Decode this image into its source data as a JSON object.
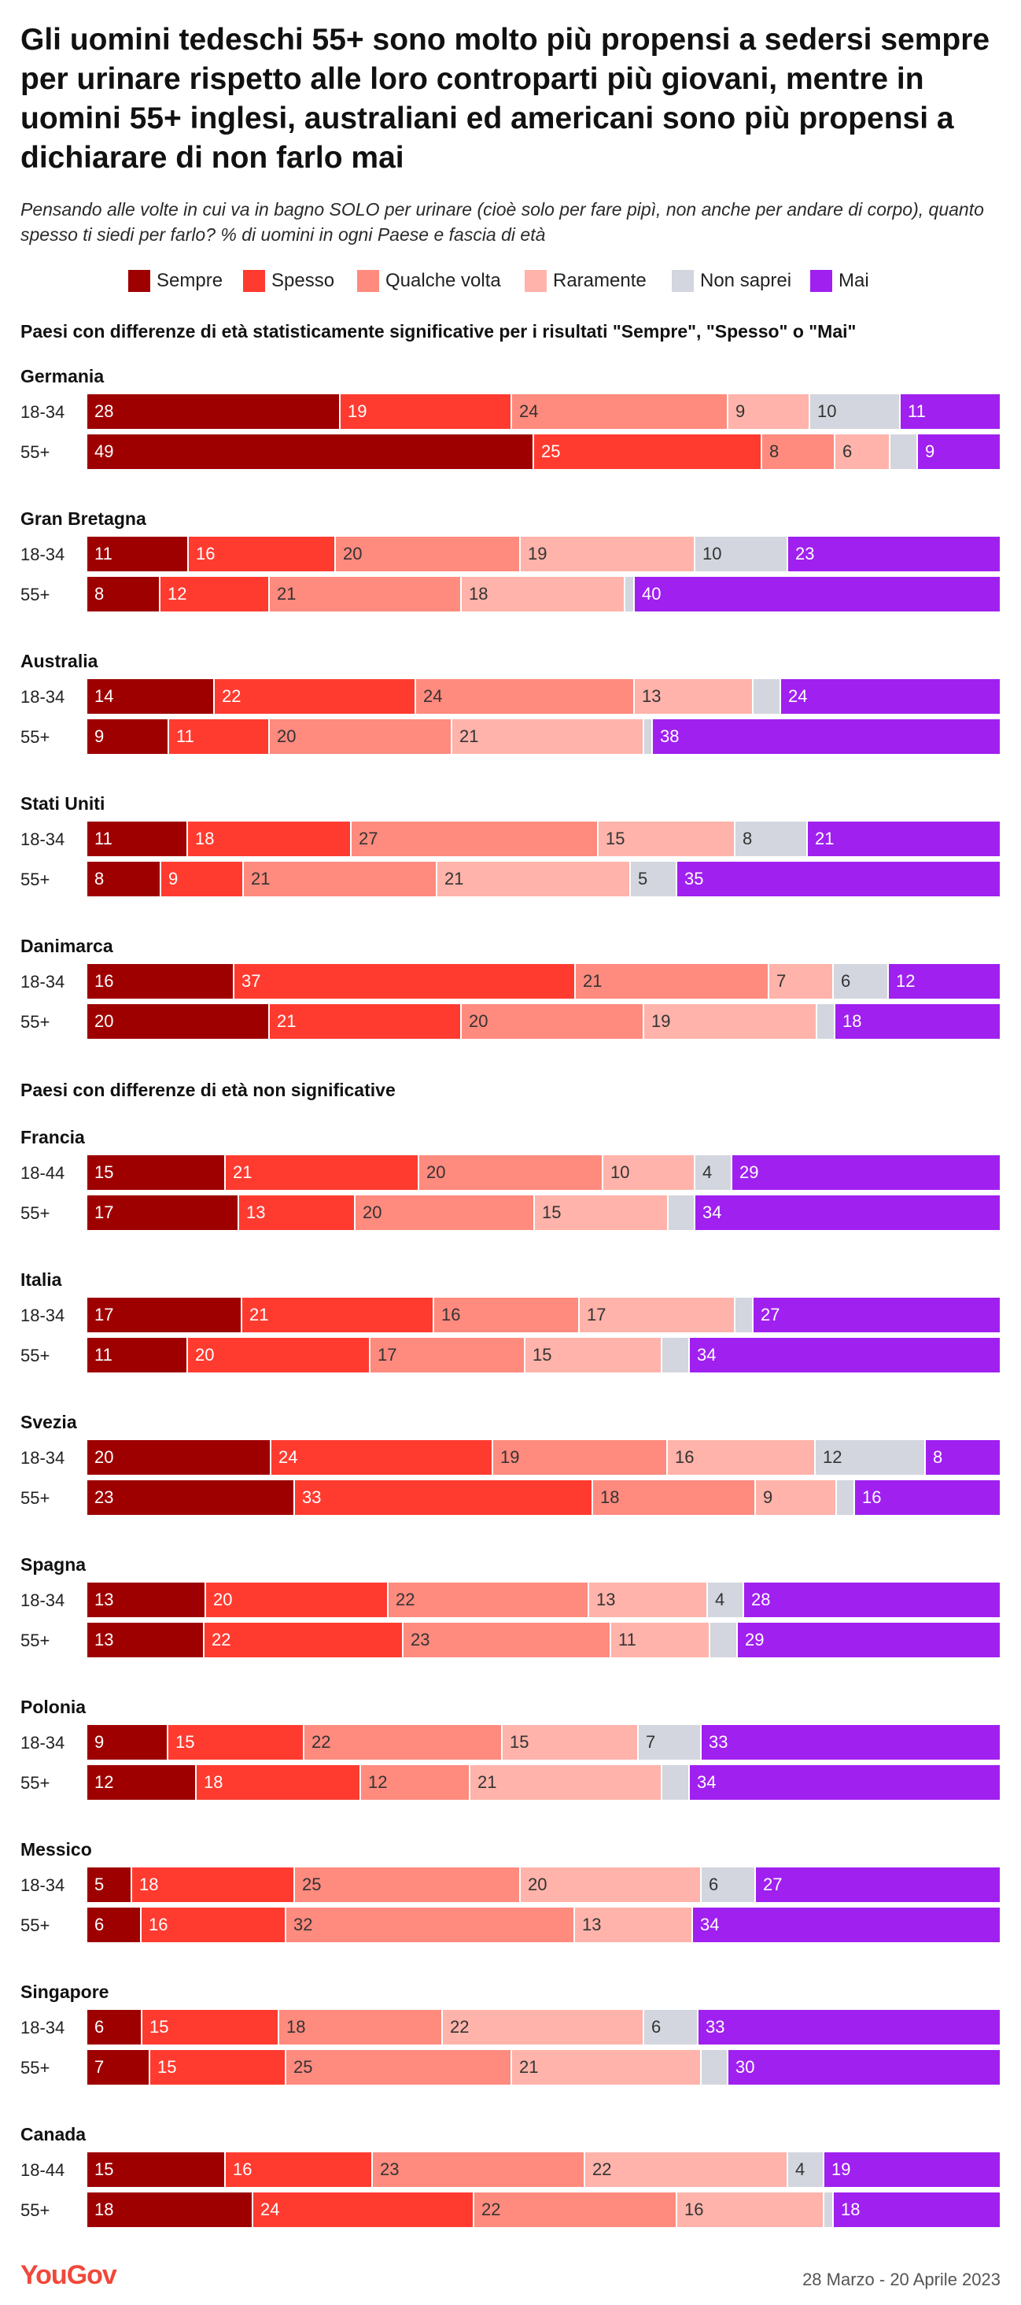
{
  "title": "Gli uomini tedeschi 55+ sono molto più propensi a sedersi sempre per urinare rispetto alle loro controparti più giovani, mentre in uomini 55+ inglesi, australiani ed americani sono più propensi a dichiarare di non farlo mai",
  "subtitle": "Pensando alle volte in cui va in bagno SOLO per urinare (cioè solo per fare pipì, non anche per andare di corpo), quanto spesso ti siedi per farlo? % di uomini in ogni Paese e fascia di età",
  "footer": {
    "logo": "YouGov",
    "date": "28 Marzo - 20 Aprile 2023"
  },
  "chart_data": {
    "type": "bar",
    "orientation": "horizontal-stacked-100",
    "categories_series": [
      "Sempre",
      "Spesso",
      "Qualche volta",
      "Raramente",
      "Non saprei",
      "Mai"
    ],
    "colors": [
      "#9e0000",
      "#ff3b30",
      "#ff8a7e",
      "#ffb3aa",
      "#d3d6de",
      "#a020f0"
    ],
    "legend_placement": "top",
    "sections": [
      {
        "title": "Paesi con differenze di età statisticamente significative per i risultati \"Sempre\", \"Spesso\" o \"Mai\"",
        "countries": [
          {
            "name": "Germania",
            "rows": [
              {
                "age": "18-34",
                "values": [
                  28,
                  19,
                  24,
                  9,
                  10,
                  11
                ],
                "labels": [
                  "28",
                  "19",
                  "24",
                  "9",
                  "10",
                  "11"
                ]
              },
              {
                "age": "55+",
                "values": [
                  49,
                  25,
                  8,
                  6,
                  3,
                  9
                ],
                "labels": [
                  "49",
                  "25",
                  "8",
                  "6",
                  "",
                  "9"
                ]
              }
            ]
          },
          {
            "name": "Gran Bretagna",
            "rows": [
              {
                "age": "18-34",
                "values": [
                  11,
                  16,
                  20,
                  19,
                  10,
                  23
                ],
                "labels": [
                  "11",
                  "16",
                  "20",
                  "19",
                  "10",
                  "23"
                ]
              },
              {
                "age": "55+",
                "values": [
                  8,
                  12,
                  21,
                  18,
                  1,
                  40
                ],
                "labels": [
                  "8",
                  "12",
                  "21",
                  "18",
                  "",
                  "40"
                ]
              }
            ]
          },
          {
            "name": "Australia",
            "rows": [
              {
                "age": "18-34",
                "values": [
                  14,
                  22,
                  24,
                  13,
                  3,
                  24
                ],
                "labels": [
                  "14",
                  "22",
                  "24",
                  "13",
                  "",
                  "24"
                ]
              },
              {
                "age": "55+",
                "values": [
                  9,
                  11,
                  20,
                  21,
                  1,
                  38
                ],
                "labels": [
                  "9",
                  "11",
                  "20",
                  "21",
                  "",
                  "38"
                ]
              }
            ]
          },
          {
            "name": "Stati Uniti",
            "rows": [
              {
                "age": "18-34",
                "values": [
                  11,
                  18,
                  27,
                  15,
                  8,
                  21
                ],
                "labels": [
                  "11",
                  "18",
                  "27",
                  "15",
                  "8",
                  "21"
                ]
              },
              {
                "age": "55+",
                "values": [
                  8,
                  9,
                  21,
                  21,
                  5,
                  35
                ],
                "labels": [
                  "8",
                  "9",
                  "21",
                  "21",
                  "5",
                  "35"
                ]
              }
            ]
          },
          {
            "name": "Danimarca",
            "rows": [
              {
                "age": "18-34",
                "values": [
                  16,
                  37,
                  21,
                  7,
                  6,
                  12
                ],
                "labels": [
                  "16",
                  "37",
                  "21",
                  "7",
                  "6",
                  "12"
                ]
              },
              {
                "age": "55+",
                "values": [
                  20,
                  21,
                  20,
                  19,
                  2,
                  18
                ],
                "labels": [
                  "20",
                  "21",
                  "20",
                  "19",
                  "",
                  "18"
                ]
              }
            ]
          }
        ]
      },
      {
        "title": "Paesi con differenze di età non significative",
        "countries": [
          {
            "name": "Francia",
            "rows": [
              {
                "age": "18-44",
                "values": [
                  15,
                  21,
                  20,
                  10,
                  4,
                  29
                ],
                "labels": [
                  "15",
                  "21",
                  "20",
                  "10",
                  "4",
                  "29"
                ]
              },
              {
                "age": "55+",
                "values": [
                  17,
                  13,
                  20,
                  15,
                  3,
                  34
                ],
                "labels": [
                  "17",
                  "13",
                  "20",
                  "15",
                  "",
                  "34"
                ]
              }
            ]
          },
          {
            "name": "Italia",
            "rows": [
              {
                "age": "18-34",
                "values": [
                  17,
                  21,
                  16,
                  17,
                  2,
                  27
                ],
                "labels": [
                  "17",
                  "21",
                  "16",
                  "17",
                  "",
                  "27"
                ]
              },
              {
                "age": "55+",
                "values": [
                  11,
                  20,
                  17,
                  15,
                  3,
                  34
                ],
                "labels": [
                  "11",
                  "20",
                  "17",
                  "15",
                  "",
                  "34"
                ]
              }
            ]
          },
          {
            "name": "Svezia",
            "rows": [
              {
                "age": "18-34",
                "values": [
                  20,
                  24,
                  19,
                  16,
                  12,
                  8
                ],
                "labels": [
                  "20",
                  "24",
                  "19",
                  "16",
                  "12",
                  "8"
                ]
              },
              {
                "age": "55+",
                "values": [
                  23,
                  33,
                  18,
                  9,
                  2,
                  16
                ],
                "labels": [
                  "23",
                  "33",
                  "18",
                  "9",
                  "",
                  "16"
                ]
              }
            ]
          },
          {
            "name": "Spagna",
            "rows": [
              {
                "age": "18-34",
                "values": [
                  13,
                  20,
                  22,
                  13,
                  4,
                  28
                ],
                "labels": [
                  "13",
                  "20",
                  "22",
                  "13",
                  "4",
                  "28"
                ]
              },
              {
                "age": "55+",
                "values": [
                  13,
                  22,
                  23,
                  11,
                  3,
                  29
                ],
                "labels": [
                  "13",
                  "22",
                  "23",
                  "11",
                  "",
                  "29"
                ]
              }
            ]
          },
          {
            "name": "Polonia",
            "rows": [
              {
                "age": "18-34",
                "values": [
                  9,
                  15,
                  22,
                  15,
                  7,
                  33
                ],
                "labels": [
                  "9",
                  "15",
                  "22",
                  "15",
                  "7",
                  "33"
                ]
              },
              {
                "age": "55+",
                "values": [
                  12,
                  18,
                  12,
                  21,
                  3,
                  34
                ],
                "labels": [
                  "12",
                  "18",
                  "12",
                  "21",
                  "",
                  "34"
                ]
              }
            ]
          },
          {
            "name": "Messico",
            "rows": [
              {
                "age": "18-34",
                "values": [
                  5,
                  18,
                  25,
                  20,
                  6,
                  27
                ],
                "labels": [
                  "5",
                  "18",
                  "25",
                  "20",
                  "6",
                  "27"
                ]
              },
              {
                "age": "55+",
                "values": [
                  6,
                  16,
                  32,
                  13,
                  0,
                  34
                ],
                "labels": [
                  "6",
                  "16",
                  "32",
                  "13",
                  "",
                  "34"
                ]
              }
            ]
          },
          {
            "name": "Singapore",
            "rows": [
              {
                "age": "18-34",
                "values": [
                  6,
                  15,
                  18,
                  22,
                  6,
                  33
                ],
                "labels": [
                  "6",
                  "15",
                  "18",
                  "22",
                  "6",
                  "33"
                ]
              },
              {
                "age": "55+",
                "values": [
                  7,
                  15,
                  25,
                  21,
                  3,
                  30
                ],
                "labels": [
                  "7",
                  "15",
                  "25",
                  "21",
                  "",
                  "30"
                ]
              }
            ]
          },
          {
            "name": "Canada",
            "rows": [
              {
                "age": "18-44",
                "values": [
                  15,
                  16,
                  23,
                  22,
                  4,
                  19
                ],
                "labels": [
                  "15",
                  "16",
                  "23",
                  "22",
                  "4",
                  "19"
                ]
              },
              {
                "age": "55+",
                "values": [
                  18,
                  24,
                  22,
                  16,
                  1,
                  18
                ],
                "labels": [
                  "18",
                  "24",
                  "22",
                  "16",
                  "",
                  "18"
                ]
              }
            ]
          }
        ]
      }
    ]
  }
}
